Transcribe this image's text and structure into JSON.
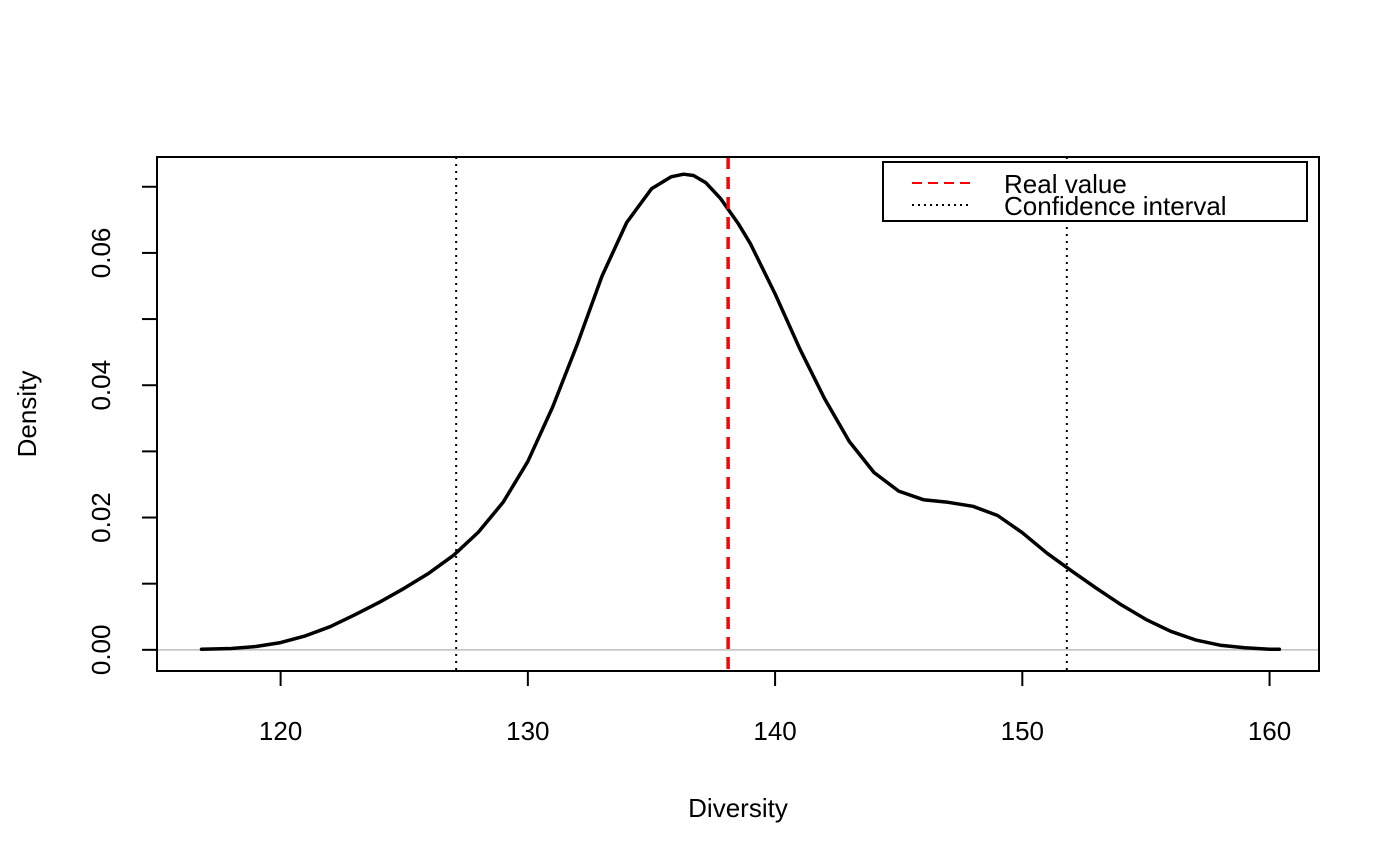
{
  "chart_data": {
    "type": "line",
    "title": "",
    "xlabel": "Diversity",
    "ylabel": "Density",
    "xlim": [
      115,
      162
    ],
    "ylim": [
      -0.0032,
      0.0745
    ],
    "xticks": [
      120,
      130,
      140,
      150,
      160
    ],
    "xtick_labels": [
      "120",
      "130",
      "140",
      "150",
      "160"
    ],
    "yticks": [
      0.0,
      0.01,
      0.02,
      0.03,
      0.04,
      0.05,
      0.06,
      0.07
    ],
    "ytick_labels": [
      "0.00",
      "",
      "0.02",
      "",
      "0.04",
      "",
      "0.06",
      ""
    ],
    "series": [
      {
        "name": "Density",
        "color": "#000000",
        "x": [
          116.8,
          118,
          119,
          120,
          121,
          122,
          123,
          124,
          125,
          126,
          127,
          128,
          129,
          130,
          131,
          132,
          133,
          134,
          135,
          135.8,
          136.3,
          136.7,
          137.2,
          137.8,
          138.5,
          139,
          140,
          141,
          142,
          143,
          144,
          145,
          146,
          147,
          148,
          149,
          150,
          151,
          152,
          153,
          154,
          155,
          156,
          157,
          158,
          159,
          160,
          160.4
        ],
        "values": [
          0.0001,
          0.0002,
          0.0005,
          0.0011,
          0.0021,
          0.0035,
          0.0053,
          0.0072,
          0.0093,
          0.0116,
          0.0143,
          0.0178,
          0.0223,
          0.0285,
          0.0367,
          0.0462,
          0.0565,
          0.0646,
          0.0697,
          0.0715,
          0.0719,
          0.0717,
          0.0706,
          0.0682,
          0.0645,
          0.0614,
          0.0538,
          0.0455,
          0.038,
          0.0315,
          0.0268,
          0.024,
          0.0227,
          0.0223,
          0.0217,
          0.0203,
          0.0177,
          0.0146,
          0.0119,
          0.0093,
          0.0068,
          0.0046,
          0.0028,
          0.0015,
          0.0007,
          0.0003,
          0.0001,
          0.0001
        ]
      }
    ],
    "vlines": [
      {
        "name": "Real value",
        "x": 138.1,
        "color": "#ff0000",
        "style": "dashed"
      },
      {
        "name": "Confidence interval",
        "x": 127.1,
        "color": "#000000",
        "style": "dotted"
      },
      {
        "name": "Confidence interval",
        "x": 151.8,
        "color": "#000000",
        "style": "dotted"
      }
    ],
    "hline": {
      "y": 0,
      "color": "#bebebe"
    },
    "legend": {
      "position": "top-right",
      "entries": [
        {
          "label": "Real value",
          "color": "#ff0000",
          "style": "dashed"
        },
        {
          "label": "Confidence interval",
          "color": "#000000",
          "style": "dotted"
        }
      ]
    }
  }
}
